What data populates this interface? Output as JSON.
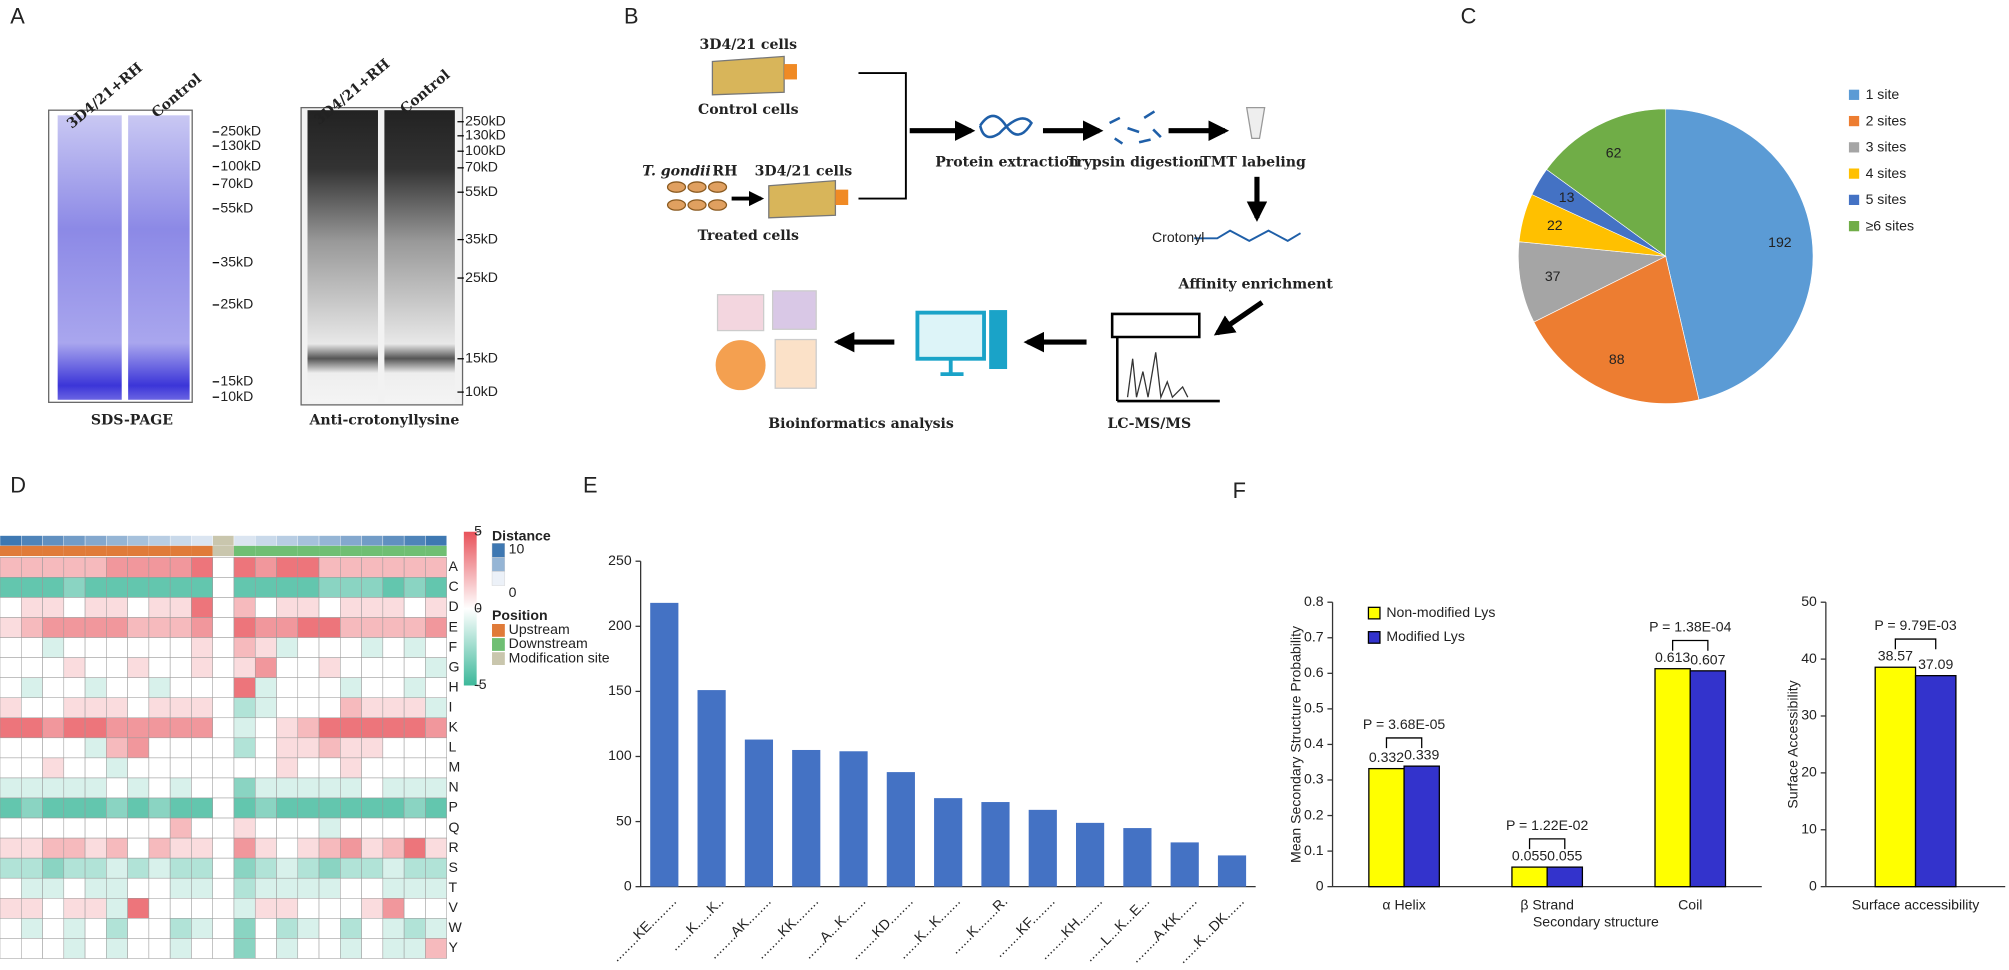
{
  "panel_labels": [
    "A",
    "B",
    "C",
    "D",
    "E",
    "F"
  ],
  "gels": [
    {
      "lanes": [
        "3D4/21+RH",
        "Control"
      ],
      "markers": [
        "250kD",
        "130kD",
        "100kD",
        "70kD",
        "55kD",
        "35kD",
        "25kD",
        "15kD",
        "10kD"
      ],
      "caption": "SDS-PAGE"
    },
    {
      "lanes": [
        "3D4/21+RH",
        "Control"
      ],
      "markers": [
        "250kD",
        "130kD",
        "100kD",
        "70kD",
        "55kD",
        "35kD",
        "25kD",
        "15kD",
        "10kD"
      ],
      "caption": "Anti-crotonyllysine"
    }
  ],
  "workflow": {
    "control_flask": "3D4/21 cells",
    "control_label": "Control cells",
    "parasite": "T. gondii",
    "strain": "RH",
    "treated_flask": "3D4/21 cells",
    "treated_label": "Treated cells",
    "steps": [
      "Protein extraction",
      "Trypsin digestion",
      "TMT labeling",
      "Affinity enrichment",
      "LC-MS/MS",
      "Bioinformatics analysis"
    ],
    "molecule": "Crotonyl"
  },
  "chart_data": [
    {
      "type": "pie",
      "categories": [
        "1 site",
        "2 sites",
        "3 sites",
        "4 sites",
        "5 sites",
        "≥6 sites"
      ],
      "values": [
        192,
        88,
        37,
        22,
        13,
        62
      ],
      "colors": [
        "#5b9bd5",
        "#ed7d31",
        "#a5a5a5",
        "#ffc000",
        "#4472c4",
        "#70ad47"
      ]
    },
    {
      "type": "heatmap",
      "rows": [
        "A",
        "C",
        "D",
        "E",
        "F",
        "G",
        "H",
        "I",
        "K",
        "L",
        "M",
        "N",
        "P",
        "Q",
        "R",
        "S",
        "T",
        "V",
        "W",
        "Y"
      ],
      "values": [
        [
          2,
          2,
          2,
          2,
          2,
          3,
          3,
          3,
          3,
          4,
          null,
          4,
          3,
          4,
          4,
          2,
          2,
          2,
          2,
          2,
          2
        ],
        [
          -4,
          -4,
          -4,
          -3,
          -4,
          -4,
          -4,
          -4,
          -4,
          -4,
          null,
          -4,
          -4,
          -4,
          -4,
          -3,
          -3,
          -3,
          -4,
          -3,
          -4
        ],
        [
          0,
          1,
          1,
          0,
          1,
          1,
          0,
          1,
          1,
          4,
          null,
          2,
          0,
          1,
          1,
          0,
          1,
          1,
          1,
          0,
          1
        ],
        [
          1,
          2,
          3,
          3,
          3,
          3,
          2,
          2,
          2,
          3,
          null,
          4,
          3,
          3,
          4,
          4,
          2,
          2,
          2,
          2,
          3
        ],
        [
          0,
          0,
          -1,
          0,
          0,
          0,
          0,
          0,
          0,
          1,
          null,
          2,
          1,
          -1,
          0,
          0,
          0,
          -1,
          0,
          -1,
          0
        ],
        [
          0,
          0,
          0,
          1,
          0,
          0,
          1,
          0,
          0,
          1,
          null,
          1,
          3,
          0,
          0,
          1,
          0,
          0,
          0,
          0,
          -1
        ],
        [
          0,
          -1,
          0,
          0,
          -1,
          0,
          0,
          -1,
          0,
          0,
          null,
          4,
          -1,
          0,
          0,
          0,
          -1,
          0,
          0,
          -1,
          0
        ],
        [
          1,
          0,
          0,
          1,
          1,
          1,
          0,
          1,
          1,
          1,
          null,
          -2,
          -1,
          0,
          0,
          0,
          2,
          1,
          1,
          1,
          -1
        ],
        [
          4,
          4,
          3,
          4,
          4,
          3,
          3,
          3,
          3,
          3,
          null,
          -1,
          0,
          1,
          2,
          4,
          4,
          4,
          4,
          4,
          3
        ],
        [
          0,
          0,
          0,
          0,
          -1,
          2,
          3,
          0,
          0,
          0,
          null,
          -2,
          0,
          1,
          1,
          2,
          1,
          1,
          0,
          0,
          0
        ],
        [
          0,
          0,
          1,
          0,
          0,
          -1,
          0,
          0,
          0,
          0,
          null,
          0,
          0,
          1,
          0,
          0,
          1,
          0,
          0,
          0,
          0
        ],
        [
          -1,
          -1,
          -1,
          -1,
          -1,
          0,
          -1,
          0,
          -1,
          0,
          null,
          -3,
          -1,
          -1,
          -1,
          -1,
          -1,
          0,
          -1,
          -1,
          -1
        ],
        [
          -4,
          -3,
          -4,
          -4,
          -4,
          -3,
          -4,
          -3,
          -4,
          -4,
          null,
          -4,
          -3,
          -4,
          -4,
          -4,
          -4,
          -4,
          -4,
          -3,
          -4
        ],
        [
          0,
          0,
          0,
          0,
          0,
          0,
          0,
          0,
          2,
          0,
          null,
          1,
          0,
          0,
          0,
          -1,
          0,
          0,
          0,
          0,
          0
        ],
        [
          1,
          1,
          2,
          2,
          1,
          2,
          0,
          2,
          1,
          1,
          null,
          3,
          1,
          0,
          1,
          2,
          3,
          1,
          2,
          4,
          1
        ],
        [
          -2,
          -2,
          -3,
          -2,
          -2,
          -1,
          -2,
          -1,
          -2,
          -2,
          null,
          -3,
          -2,
          -1,
          -2,
          -3,
          -2,
          -2,
          -1,
          -2,
          -2
        ],
        [
          0,
          -1,
          -1,
          0,
          -1,
          -1,
          0,
          0,
          -1,
          -1,
          null,
          -2,
          -1,
          -1,
          -1,
          -1,
          0,
          0,
          -1,
          -1,
          -1
        ],
        [
          1,
          1,
          0,
          1,
          1,
          -1,
          4,
          0,
          0,
          0,
          null,
          -1,
          1,
          1,
          0,
          0,
          0,
          1,
          3,
          0,
          0
        ],
        [
          0,
          -1,
          0,
          -1,
          0,
          -2,
          0,
          0,
          -2,
          -1,
          null,
          -3,
          0,
          -2,
          -1,
          0,
          -2,
          0,
          -1,
          -2,
          -1
        ],
        [
          0,
          0,
          0,
          -1,
          0,
          -1,
          0,
          0,
          -1,
          0,
          null,
          -3,
          0,
          -1,
          0,
          0,
          -1,
          0,
          -1,
          -1,
          2
        ]
      ],
      "zlim": [
        -5,
        5
      ],
      "zticks": [
        5,
        0,
        -5
      ],
      "distance": [
        10,
        9,
        8,
        7,
        6,
        5,
        4,
        3,
        2,
        1,
        0,
        1,
        2,
        3,
        4,
        5,
        6,
        7,
        8,
        9,
        10
      ],
      "distance_title": "Distance",
      "distance_ticks": [
        10,
        0
      ],
      "position": [
        "Upstream",
        "Upstream",
        "Upstream",
        "Upstream",
        "Upstream",
        "Upstream",
        "Upstream",
        "Upstream",
        "Upstream",
        "Upstream",
        "Modification site",
        "Downstream",
        "Downstream",
        "Downstream",
        "Downstream",
        "Downstream",
        "Downstream",
        "Downstream",
        "Downstream",
        "Downstream",
        "Downstream"
      ],
      "position_title": "Position",
      "position_legend": [
        {
          "name": "Upstream",
          "color": "#e07b39"
        },
        {
          "name": "Downstream",
          "color": "#6fbf73"
        },
        {
          "name": "Modification site",
          "color": "#c9c6ad"
        }
      ]
    },
    {
      "type": "bar",
      "categories": [
        "........KE.........",
        "......K.....K..",
        "........AK........",
        "........KK........",
        "......A...K.......",
        "........KD........",
        "......K...K.......",
        "......K.......R.",
        "........KF........",
        "........KH........",
        "......L...K...E...",
        "........A.KK......",
        "......K...DK......"
      ],
      "values": [
        218,
        151,
        113,
        105,
        104,
        88,
        68,
        65,
        59,
        49,
        45,
        34,
        24
      ],
      "color": "#4472c4",
      "ylim": [
        0,
        250
      ],
      "yticks": [
        0,
        50,
        100,
        150,
        200,
        250
      ]
    },
    {
      "type": "grouped_bar",
      "ylabel": "Mean Secondary Structure Probability",
      "xlabel": "Secondary structure",
      "categories": [
        "α Helix",
        "β Strand",
        "Coil"
      ],
      "series": [
        {
          "name": "Non-modified Lys",
          "color": "#ffff00",
          "values": [
            0.332,
            0.055,
            0.613
          ]
        },
        {
          "name": "Modified Lys",
          "color": "#3333cc",
          "values": [
            0.339,
            0.055,
            0.607
          ]
        }
      ],
      "annotations": [
        "P = 3.68E-05",
        "P = 1.22E-02",
        "P = 1.38E-04"
      ],
      "ylim": [
        0,
        0.8
      ],
      "yticks": [
        0,
        0.1,
        0.2,
        0.3,
        0.4,
        0.5,
        0.6,
        0.7,
        0.8
      ]
    },
    {
      "type": "grouped_bar",
      "ylabel": "Surface Accessibility",
      "categories": [
        "Surface accessibility"
      ],
      "series": [
        {
          "color": "#ffff00",
          "values": [
            38.57
          ]
        },
        {
          "color": "#3333cc",
          "values": [
            37.09
          ]
        }
      ],
      "annotations": [
        "P = 9.79E-03"
      ],
      "ylim": [
        0,
        50
      ],
      "yticks": [
        0,
        10,
        20,
        30,
        40,
        50
      ]
    }
  ]
}
